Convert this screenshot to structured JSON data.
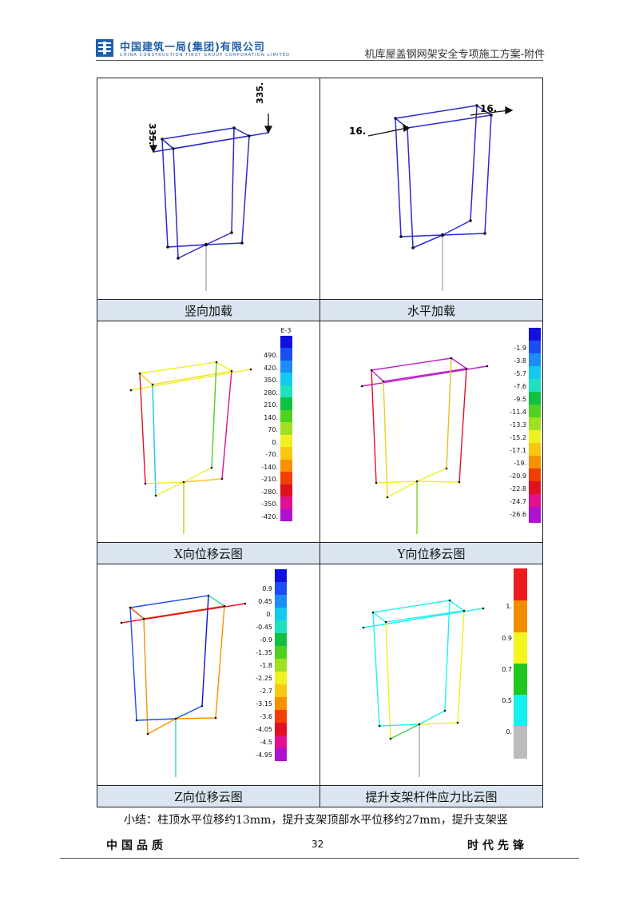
{
  "header": {
    "company_cn": "中国建筑一局(集团)有限公司",
    "company_en": "CHINA CONSTRUCTION FIRST GROUP CORPORATION LIMITED",
    "doc_title": "机库屋盖钢网架安全专项施工方案-附件"
  },
  "figures": [
    {
      "caption": "竖向加载",
      "load_labels": [
        "335.",
        "335."
      ]
    },
    {
      "caption": "水平加载",
      "load_labels": [
        "16.",
        "16."
      ]
    },
    {
      "caption": "X向位移云图",
      "legend_unit": "E-3",
      "legend_values": [
        "490.",
        "420.",
        "350.",
        "280.",
        "210.",
        "140.",
        "70.",
        "0.",
        "-70.",
        "-140.",
        "-210.",
        "-280.",
        "-350.",
        "-420."
      ]
    },
    {
      "caption": "Y向位移云图",
      "legend_values": [
        "-1.9",
        "-3.8",
        "-5.7",
        "-7.6",
        "-9.5",
        "-11.4",
        "-13.3",
        "-15.2",
        "-17.1",
        "-19.",
        "-20.9",
        "-22.8",
        "-24.7",
        "-26.6"
      ]
    },
    {
      "caption": "Z向位移云图",
      "legend_values": [
        "0.9",
        "0.45",
        "0.",
        "-0.45",
        "-0.9",
        "-1.35",
        "-1.8",
        "-2.25",
        "-2.7",
        "-3.15",
        "-3.6",
        "-4.05",
        "-4.5",
        "-4.95"
      ]
    },
    {
      "caption": "提升支架杆件应力比云图",
      "legend_values": [
        "1.",
        "0.9",
        "0.7",
        "0.5",
        "0."
      ]
    }
  ],
  "summary": "小结：柱顶水平位移约13mm，提升支架顶部水平位移约27mm，提升支架竖",
  "footer": {
    "left": "中国品质",
    "page": "32",
    "right": "时代先锋"
  },
  "colors": {
    "frame_blue": "#2b2bd0",
    "caption_bg": "#dbe5f1",
    "brand_blue": "#1f5fa8",
    "scale_16": [
      "#1010e0",
      "#1a4ef0",
      "#1e8cf5",
      "#14c8f0",
      "#20e0c0",
      "#10c040",
      "#50d020",
      "#a0e020",
      "#f0f020",
      "#f8c810",
      "#f89000",
      "#f04000",
      "#e01020",
      "#e01090",
      "#b010d0"
    ],
    "scale_ratio": [
      "#ee1c1c",
      "#f28c00",
      "#f5f51e",
      "#1ec81e",
      "#14f0f0",
      "#bcbcbc"
    ]
  }
}
